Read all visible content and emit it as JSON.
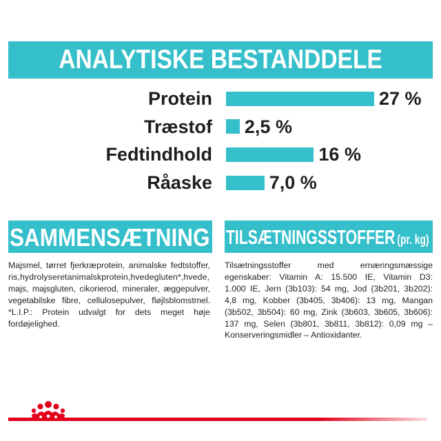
{
  "chart_data": {
    "type": "bar",
    "horizontal": true,
    "title": "ANALYTISKE BESTANDDELE",
    "categories": [
      "Protein",
      "Træstof",
      "Fedtindhold",
      "Råaske"
    ],
    "values": [
      27,
      2.5,
      16,
      7.0
    ],
    "value_labels": [
      "27 %",
      "2,5 %",
      "16 %",
      "7,0 %"
    ],
    "grid": false
  },
  "composition": {
    "heading": "SAMMENSÆTNING",
    "lines": [
      "Majsmel, tørret fjerkræprotein, animalske fedtstoffer,",
      "ris,hydrolyseretanimalskprotein,hvedegluten*,hvede,",
      "majs, majsgluten, cikorierod, mineraler, æggepulver,",
      "vegetabilske fibre, cellulosepulver, fløjlsblomstmel.",
      "*L.I.P.: Protein udvalgt for dets meget høje",
      "fordøjelighed."
    ]
  },
  "additives": {
    "heading": "TILSÆTNINGSSTOFFER",
    "heading_unit": "(pr. kg)",
    "lines": [
      "Tilsætningsstoffer med ernæringsmæssige",
      "egenskaber: Vitamin A: 15.500 IE, Vitamin D3:",
      "1.000 IE, Jern (3b103): 54 mg, Jod (3b201, 3b202):",
      "4,8 mg, Kobber (3b405, 3b406): 13 mg, Mangan",
      "(3b502, 3b504): 60 mg, Zink (3b603, 3b605, 3b606):",
      "137 mg, Selen (3b801, 3b811, 3b812): 0,09 mg –",
      "Konserveringsmidler – Antioxidanter."
    ]
  },
  "logo": {
    "icon": "crown-icon"
  },
  "colors": {
    "accent": "#35bfca",
    "brand_red": "#e2001a",
    "text": "#1e1e1e"
  }
}
